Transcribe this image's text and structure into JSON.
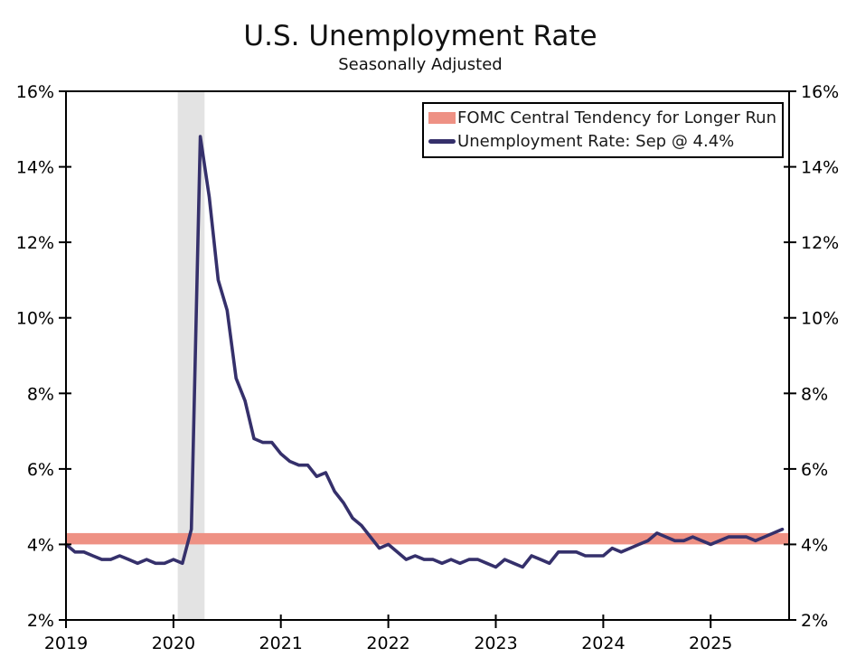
{
  "page": {
    "title": "U.S. Unemployment Rate",
    "subtitle": "Seasonally Adjusted"
  },
  "legend": {
    "items": [
      {
        "label": "FOMC Central Tendency for Longer Run",
        "swatch": "band",
        "color": "#ee9184"
      },
      {
        "label": "Unemployment Rate: Sep @ 4.4%",
        "swatch": "line",
        "color": "#35306b"
      }
    ]
  },
  "chart_data": {
    "type": "line",
    "title": "U.S. Unemployment Rate",
    "subtitle": "Seasonally Adjusted",
    "grid": false,
    "legend_position": "top-right",
    "xlim": [
      2019.0,
      2025.73
    ],
    "ylim": [
      2,
      16
    ],
    "y_ticks": [
      2,
      4,
      6,
      8,
      10,
      12,
      14,
      16
    ],
    "y_tick_suffix": "%",
    "y_axis_sides": [
      "left",
      "right"
    ],
    "x_ticks": [
      2019,
      2020,
      2021,
      2022,
      2023,
      2024,
      2025
    ],
    "series": [
      {
        "name": "Unemployment Rate: Sep @ 4.4%",
        "color": "#35306b",
        "start_year": 2019,
        "start_month": 1,
        "end_label": "Sep 2025",
        "last_value": 4.4,
        "frequency": "monthly",
        "values": [
          4.0,
          3.8,
          3.8,
          3.7,
          3.6,
          3.6,
          3.7,
          3.6,
          3.5,
          3.6,
          3.5,
          3.5,
          3.6,
          3.5,
          4.4,
          14.8,
          13.2,
          11.0,
          10.2,
          8.4,
          7.8,
          6.8,
          6.7,
          6.7,
          6.4,
          6.2,
          6.1,
          6.1,
          5.8,
          5.9,
          5.4,
          5.1,
          4.7,
          4.5,
          4.2,
          3.9,
          4.0,
          3.8,
          3.6,
          3.7,
          3.6,
          3.6,
          3.5,
          3.6,
          3.5,
          3.6,
          3.6,
          3.5,
          3.4,
          3.6,
          3.5,
          3.4,
          3.7,
          3.6,
          3.5,
          3.8,
          3.8,
          3.8,
          3.7,
          3.7,
          3.7,
          3.9,
          3.8,
          3.9,
          4.0,
          4.1,
          4.3,
          4.2,
          4.1,
          4.1,
          4.2,
          4.1,
          4.0,
          4.1,
          4.2,
          4.2,
          4.2,
          4.1,
          4.2,
          4.3,
          4.4
        ]
      }
    ],
    "fomc_band": {
      "name": "FOMC Central Tendency for Longer Run",
      "from": 4.0,
      "to": 4.3,
      "color": "#ee9184"
    },
    "recession_band": {
      "from": 2020.04,
      "to": 2020.29,
      "color": "#e3e3e3"
    },
    "colors": {
      "axis": "#000000",
      "tick_label": "#000000",
      "background": "#ffffff"
    }
  }
}
